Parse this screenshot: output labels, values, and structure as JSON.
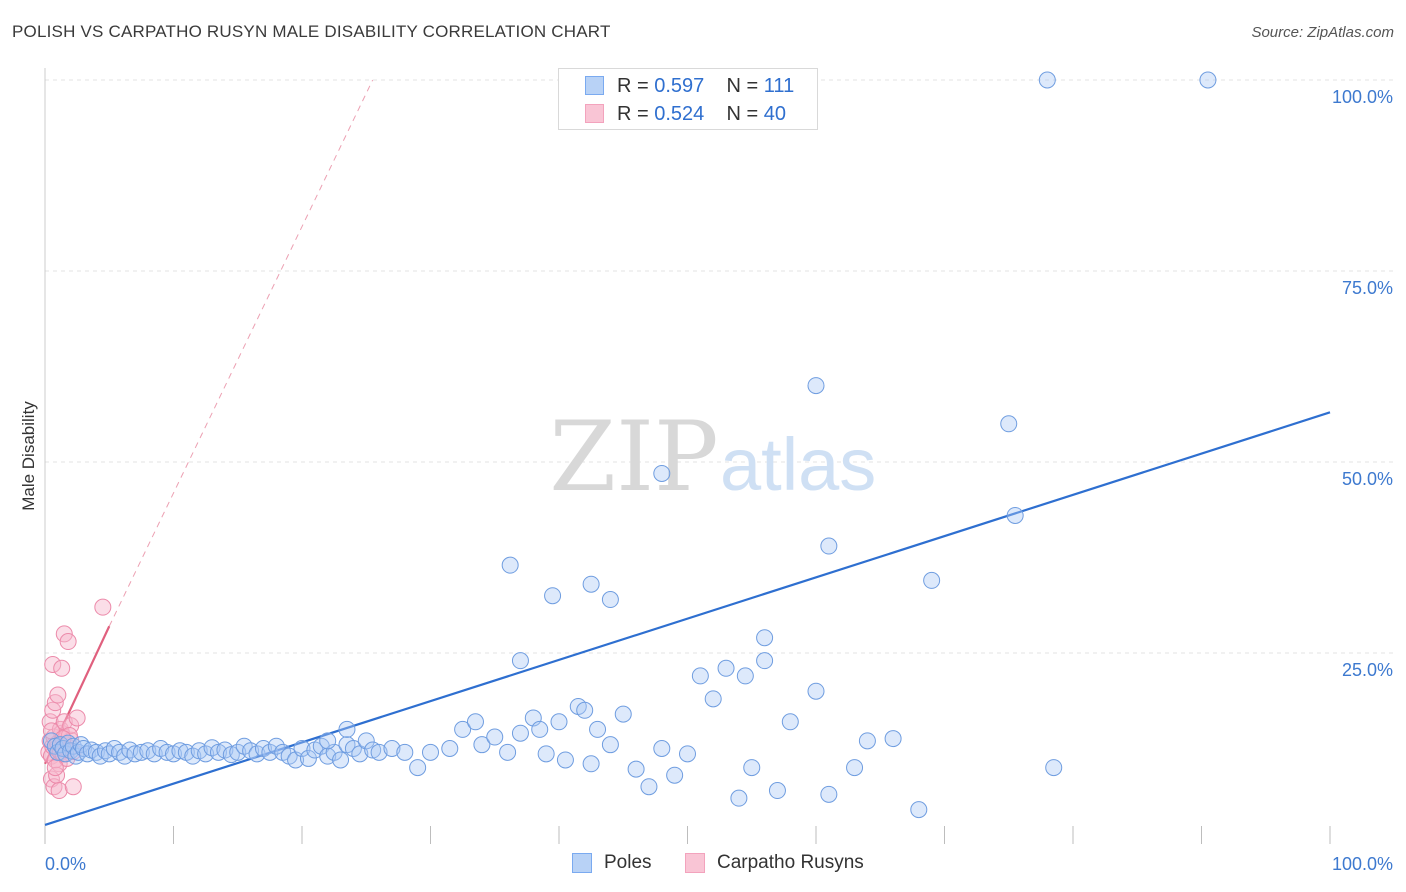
{
  "header": {
    "title": "POLISH VS CARPATHO RUSYN MALE DISABILITY CORRELATION CHART",
    "source": "Source: ZipAtlas.com"
  },
  "watermark": {
    "part1": "ZIP",
    "part2": "atlas"
  },
  "stats_legend": {
    "rows": [
      {
        "r_label": "R =",
        "r_value": "0.597",
        "n_label": "N =",
        "n_value": "111",
        "color": "#7aaaf0"
      },
      {
        "r_label": "R =",
        "r_value": "0.524",
        "n_label": "N =",
        "n_value": "40",
        "color": "#f3a3bd"
      }
    ]
  },
  "colors": {
    "poles_fill": "#a9c8f4",
    "poles_stroke": "#6f9de0",
    "poles_line": "#2e6fd0",
    "rusyn_fill": "#f7b6cb",
    "rusyn_stroke": "#ec8aaa",
    "rusyn_line": "#e0607e",
    "axis_label": "#3d79cf"
  },
  "chart_data": {
    "type": "scatter",
    "title": "POLISH VS CARPATHO RUSYN MALE DISABILITY CORRELATION CHART",
    "xlabel": "",
    "ylabel": "Male Disability",
    "xlim": [
      0,
      100
    ],
    "ylim": [
      0,
      100
    ],
    "x_tick_labels": [
      "0.0%",
      "100.0%"
    ],
    "y_tick_labels": [
      "100.0%",
      "75.0%",
      "50.0%",
      "25.0%"
    ],
    "y_ticks": [
      100,
      75,
      50,
      25
    ],
    "grid": true,
    "legend_position": "bottom",
    "series": [
      {
        "name": "Poles",
        "points": [
          [
            0.5,
            13.5
          ],
          [
            0.8,
            12.8
          ],
          [
            1.0,
            12.0
          ],
          [
            1.2,
            13.0
          ],
          [
            1.4,
            12.5
          ],
          [
            1.6,
            11.8
          ],
          [
            1.8,
            13.2
          ],
          [
            2.0,
            12.2
          ],
          [
            2.2,
            12.8
          ],
          [
            2.4,
            11.5
          ],
          [
            2.6,
            12.0
          ],
          [
            2.8,
            13.0
          ],
          [
            3.0,
            12.5
          ],
          [
            3.3,
            11.8
          ],
          [
            3.6,
            12.3
          ],
          [
            4.0,
            12.0
          ],
          [
            4.3,
            11.5
          ],
          [
            4.7,
            12.2
          ],
          [
            5.0,
            11.8
          ],
          [
            5.4,
            12.5
          ],
          [
            5.8,
            12.0
          ],
          [
            6.2,
            11.5
          ],
          [
            6.6,
            12.3
          ],
          [
            7.0,
            11.8
          ],
          [
            7.5,
            12.0
          ],
          [
            8.0,
            12.2
          ],
          [
            8.5,
            11.8
          ],
          [
            9.0,
            12.5
          ],
          [
            9.5,
            12.0
          ],
          [
            10.0,
            11.8
          ],
          [
            10.5,
            12.2
          ],
          [
            11.0,
            12.0
          ],
          [
            11.5,
            11.5
          ],
          [
            12.0,
            12.2
          ],
          [
            12.5,
            11.8
          ],
          [
            13.0,
            12.6
          ],
          [
            13.5,
            12.0
          ],
          [
            14.0,
            12.3
          ],
          [
            14.5,
            11.7
          ],
          [
            15.0,
            12.0
          ],
          [
            15.5,
            12.8
          ],
          [
            16.0,
            12.2
          ],
          [
            16.5,
            11.8
          ],
          [
            17.0,
            12.5
          ],
          [
            17.5,
            12.0
          ],
          [
            18.0,
            12.8
          ],
          [
            18.5,
            12.0
          ],
          [
            19.0,
            11.5
          ],
          [
            19.5,
            11.0
          ],
          [
            20.0,
            12.5
          ],
          [
            20.5,
            11.2
          ],
          [
            21.0,
            12.3
          ],
          [
            21.5,
            12.8
          ],
          [
            22.0,
            11.5
          ],
          [
            22.5,
            12.0
          ],
          [
            23.0,
            11.0
          ],
          [
            23.5,
            13.0
          ],
          [
            24.0,
            12.5
          ],
          [
            24.5,
            11.8
          ],
          [
            25.0,
            13.5
          ],
          [
            25.5,
            12.3
          ],
          [
            26.0,
            12.0
          ],
          [
            27.0,
            12.5
          ],
          [
            28.0,
            12.0
          ],
          [
            29.0,
            10.0
          ],
          [
            30.0,
            12.0
          ],
          [
            31.5,
            12.5
          ],
          [
            32.5,
            15.0
          ],
          [
            33.5,
            16.0
          ],
          [
            34.0,
            13.0
          ],
          [
            35.0,
            14.0
          ],
          [
            36.0,
            12.0
          ],
          [
            37.0,
            14.5
          ],
          [
            38.0,
            16.5
          ],
          [
            38.5,
            15.0
          ],
          [
            39.0,
            11.8
          ],
          [
            40.0,
            16.0
          ],
          [
            40.5,
            11.0
          ],
          [
            41.5,
            18.0
          ],
          [
            42.0,
            17.5
          ],
          [
            42.5,
            10.5
          ],
          [
            43.0,
            15.0
          ],
          [
            44.0,
            13.0
          ],
          [
            45.0,
            17.0
          ],
          [
            46.0,
            9.8
          ],
          [
            47.0,
            7.5
          ],
          [
            48.0,
            12.5
          ],
          [
            49.0,
            9.0
          ],
          [
            50.0,
            11.8
          ],
          [
            51.0,
            22.0
          ],
          [
            52.0,
            19.0
          ],
          [
            53.0,
            23.0
          ],
          [
            54.0,
            6.0
          ],
          [
            55.0,
            10.0
          ],
          [
            56.0,
            24.0
          ],
          [
            57.0,
            7.0
          ],
          [
            58.0,
            16.0
          ],
          [
            60.0,
            20.0
          ],
          [
            61.0,
            6.5
          ],
          [
            63.0,
            10.0
          ],
          [
            64.0,
            13.5
          ],
          [
            66.0,
            13.8
          ],
          [
            68.0,
            4.5
          ],
          [
            22.0,
            13.5
          ],
          [
            23.5,
            15.0
          ],
          [
            36.2,
            36.5
          ],
          [
            37.0,
            24.0
          ],
          [
            39.5,
            32.5
          ],
          [
            42.5,
            34.0
          ],
          [
            44.0,
            32.0
          ],
          [
            48.0,
            48.5
          ]
        ]
      },
      {
        "name": "Carpatho Rusyns",
        "points": [
          [
            0.3,
            12.0
          ],
          [
            0.4,
            13.5
          ],
          [
            0.5,
            11.5
          ],
          [
            0.6,
            12.8
          ],
          [
            0.7,
            14.0
          ],
          [
            0.8,
            11.0
          ],
          [
            0.9,
            12.5
          ],
          [
            1.0,
            13.2
          ],
          [
            1.1,
            10.5
          ],
          [
            1.2,
            12.0
          ],
          [
            1.3,
            14.5
          ],
          [
            1.4,
            11.8
          ],
          [
            1.5,
            12.6
          ],
          [
            1.6,
            13.0
          ],
          [
            1.7,
            11.2
          ],
          [
            1.8,
            12.3
          ],
          [
            2.0,
            13.6
          ],
          [
            2.2,
            12.1
          ],
          [
            0.4,
            16.0
          ],
          [
            0.6,
            17.5
          ],
          [
            0.8,
            18.5
          ],
          [
            1.0,
            19.5
          ],
          [
            1.2,
            15.0
          ],
          [
            1.5,
            16.0
          ],
          [
            2.0,
            15.5
          ],
          [
            2.5,
            16.5
          ],
          [
            0.5,
            8.5
          ],
          [
            0.7,
            7.5
          ],
          [
            0.9,
            9.0
          ],
          [
            1.1,
            7.0
          ],
          [
            2.2,
            7.5
          ],
          [
            0.6,
            23.5
          ],
          [
            1.3,
            23.0
          ],
          [
            1.5,
            27.5
          ],
          [
            1.8,
            26.5
          ],
          [
            4.5,
            31.0
          ],
          [
            0.8,
            10.0
          ],
          [
            1.9,
            14.2
          ],
          [
            0.5,
            14.8
          ],
          [
            1.4,
            13.8
          ]
        ]
      }
    ],
    "trendlines": [
      {
        "series": "Poles",
        "from": [
          0,
          2.5
        ],
        "to": [
          100,
          56.5
        ],
        "style": "solid"
      },
      {
        "series": "Carpatho Rusyns",
        "from": [
          0,
          10.5
        ],
        "to": [
          5,
          28.5
        ],
        "style": "solid"
      },
      {
        "series": "Carpatho Rusyns",
        "from": [
          5,
          28.5
        ],
        "to": [
          25.5,
          100
        ],
        "style": "dashed"
      }
    ],
    "stats": [
      {
        "series": "Poles",
        "R": 0.597,
        "N": 111
      },
      {
        "series": "Carpatho Rusyns",
        "R": 0.524,
        "N": 40
      }
    ],
    "extra_points_poles_high": [
      [
        52.5,
        100
      ],
      [
        78.0,
        100
      ],
      [
        90.5,
        100
      ],
      [
        60.0,
        60.0
      ],
      [
        75.0,
        55.0
      ],
      [
        75.5,
        43.0
      ],
      [
        61.0,
        39.0
      ],
      [
        69.0,
        34.5
      ],
      [
        56.0,
        27.0
      ],
      [
        54.5,
        22.0
      ],
      [
        78.5,
        10.0
      ]
    ]
  },
  "bottom_legend": {
    "items": [
      {
        "label": "Poles"
      },
      {
        "label": "Carpatho Rusyns"
      }
    ]
  }
}
